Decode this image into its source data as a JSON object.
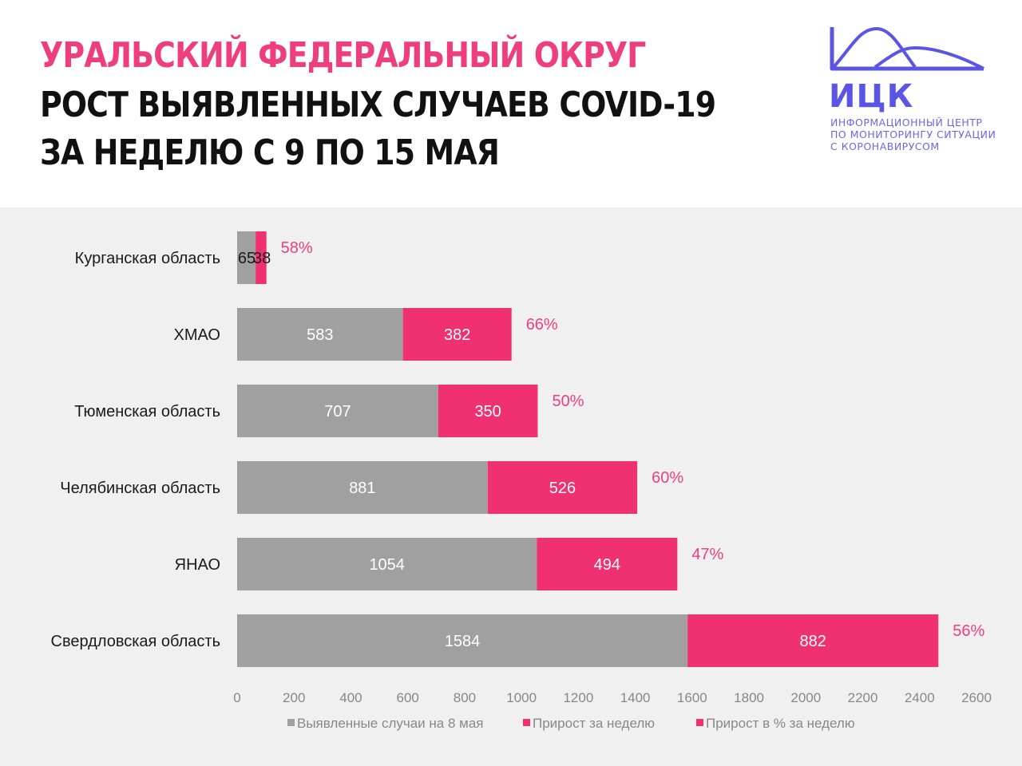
{
  "header": {
    "title_line1": "УРАЛЬСКИЙ ФЕДЕРАЛЬНЫЙ ОКРУГ",
    "title_line2": "РОСТ ВЫЯВЛЕННЫХ СЛУЧАЕВ COVID-19",
    "title_line3": "ЗА НЕДЕЛЮ С 9 ПО 15 МАЯ"
  },
  "logo": {
    "abbr": "ИЦК",
    "line1": "ИНФОРМАЦИОННЫЙ ЦЕНТР",
    "line2": "ПО МОНИТОРИНГУ СИТУАЦИИ",
    "line3": "С КОРОНАВИРУСОМ",
    "color": "#5b55e6"
  },
  "chart_data": {
    "type": "bar",
    "orientation": "horizontal",
    "stacked": true,
    "categories": [
      "Курганская область",
      "ХМАО",
      "Тюменская область",
      "Челябинская область",
      "ЯНАО",
      "Свердловская область"
    ],
    "series": [
      {
        "name": "Выявленные случаи на 8 мая",
        "color": "#a0a0a0",
        "values": [
          65,
          583,
          707,
          881,
          1054,
          1584
        ]
      },
      {
        "name": "Прирост за неделю",
        "color": "#ef3071",
        "values": [
          38,
          382,
          350,
          526,
          494,
          882
        ]
      }
    ],
    "growth_percent": {
      "name": "Прирост в % за неделю",
      "color": "#ef3071",
      "labels": [
        "58%",
        "66%",
        "50%",
        "60%",
        "47%",
        "56%"
      ]
    },
    "xlim": [
      0,
      2600
    ],
    "xticks": [
      0,
      200,
      400,
      600,
      800,
      1000,
      1200,
      1400,
      1600,
      1800,
      2000,
      2200,
      2400,
      2600
    ],
    "grid": false,
    "legend_position": "bottom"
  }
}
